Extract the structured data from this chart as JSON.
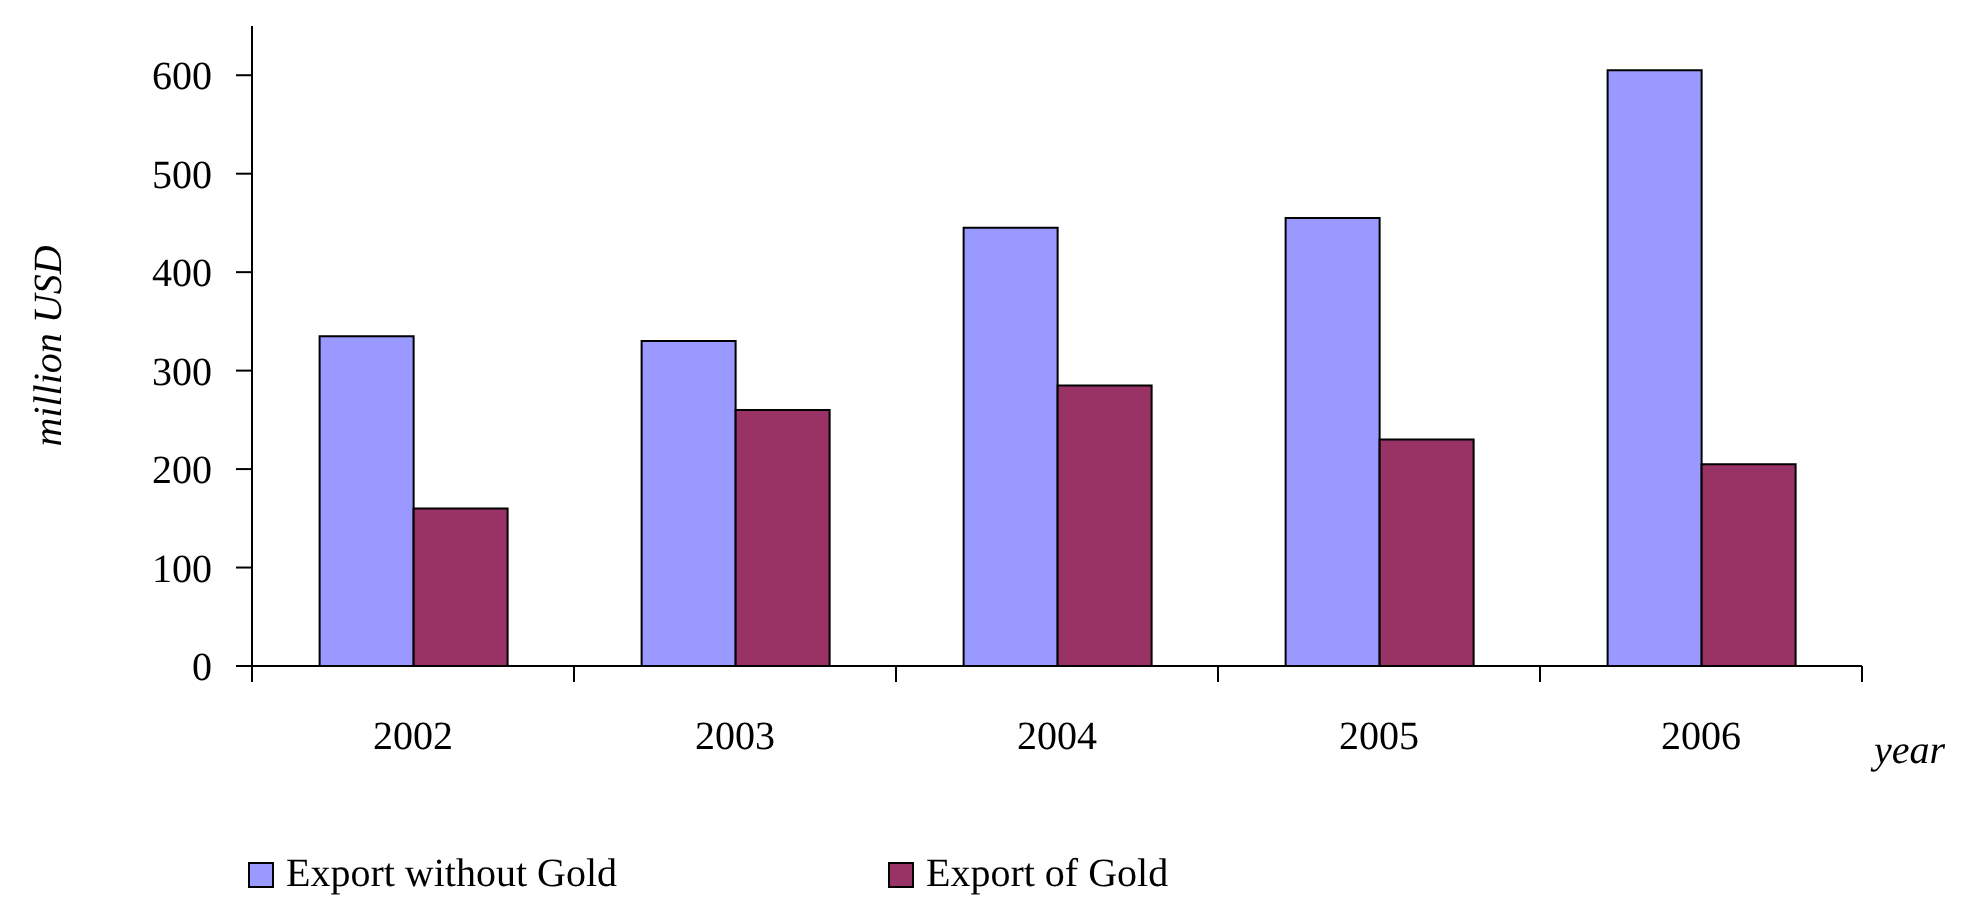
{
  "chart_data": {
    "type": "bar",
    "xlabel": "year",
    "ylabel": "million USD",
    "categories": [
      "2002",
      "2003",
      "2004",
      "2005",
      "2006"
    ],
    "series": [
      {
        "name": "Export without Gold",
        "color": "#9999ff",
        "values": [
          335,
          330,
          445,
          455,
          605
        ]
      },
      {
        "name": "Export of Gold",
        "color": "#993366",
        "values": [
          160,
          260,
          285,
          230,
          205
        ]
      }
    ],
    "ylim": [
      0,
      650
    ],
    "yticks": [
      0,
      100,
      200,
      300,
      400,
      500,
      600
    ],
    "grid": false,
    "legend": "bottom"
  }
}
